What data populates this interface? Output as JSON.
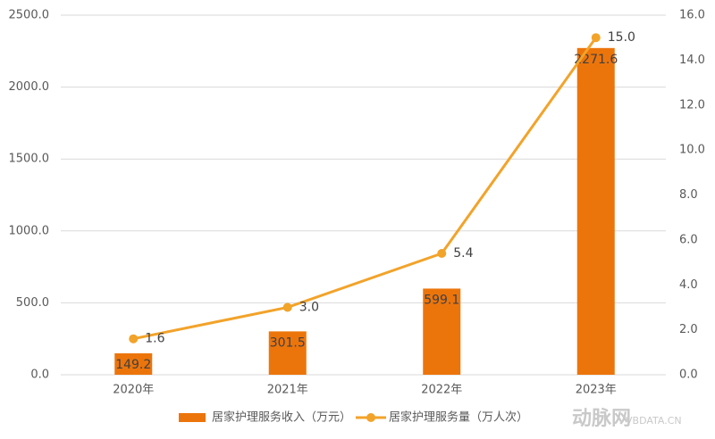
{
  "chart_data": {
    "type": "bar-line",
    "categories": [
      "2020年",
      "2021年",
      "2022年",
      "2023年"
    ],
    "series": [
      {
        "name": "居家护理服务收入（万元）",
        "type": "bar",
        "color": "#ec750b",
        "values": [
          149.2,
          301.5,
          599.1,
          2271.6
        ]
      },
      {
        "name": "居家护理服务量（万人次）",
        "type": "line",
        "axis": "y2",
        "color": "#f2a32a",
        "values": [
          1.6,
          3.0,
          5.4,
          15.0
        ],
        "value_labels": [
          "1.6",
          "3.0",
          "5.4",
          "15.0"
        ]
      }
    ],
    "ylim": [
      0,
      2500
    ],
    "yticks": [
      {
        "value": 0,
        "label": "0.0"
      },
      {
        "value": 500,
        "label": "500.0"
      },
      {
        "value": 1000,
        "label": "1000.0"
      },
      {
        "value": 1500,
        "label": "1500.0"
      },
      {
        "value": 2000,
        "label": "2000.0"
      },
      {
        "value": 2500,
        "label": "2500.0"
      }
    ],
    "y2lim": [
      0,
      16
    ],
    "y2ticks": [
      {
        "value": 0,
        "label": "0.0"
      },
      {
        "value": 2,
        "label": "2.0"
      },
      {
        "value": 4,
        "label": "4.0"
      },
      {
        "value": 6,
        "label": "6.0"
      },
      {
        "value": 8,
        "label": "8.0"
      },
      {
        "value": 10,
        "label": "10.0"
      },
      {
        "value": 12,
        "label": "12.0"
      },
      {
        "value": 14,
        "label": "14.0"
      },
      {
        "value": 16,
        "label": "16.0"
      }
    ],
    "grid": true,
    "legend": "bottom",
    "watermark": {
      "name": "动脉网",
      "site": "VBDATA.CN"
    }
  }
}
